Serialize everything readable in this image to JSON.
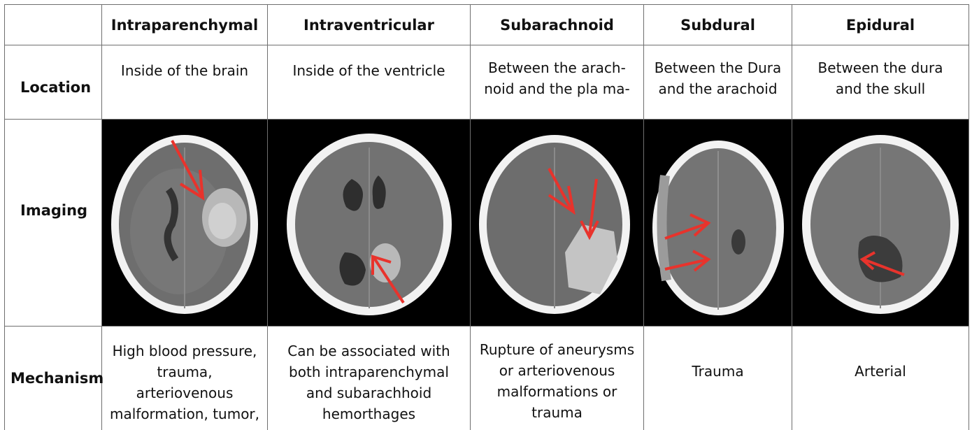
{
  "columns": [
    "Intraparenchymal",
    "Intraventricular",
    "Subarachnoid",
    "Subdural",
    "Epidural"
  ],
  "rows": {
    "location": {
      "label": "Location",
      "cells": [
        "Inside of the brain",
        "Inside of the ventricle",
        "Between the arach-\nnoid and the pla ma-",
        "Between the Dura\nand the arachoid",
        "Between the dura\nand the skull"
      ]
    },
    "imaging": {
      "label": "Imaging",
      "images": [
        "ct-scan-intraparenchymal",
        "ct-scan-intraventricular",
        "ct-scan-subarachnoid",
        "ct-scan-subdural",
        "ct-scan-epidural"
      ]
    },
    "mechanism": {
      "label": "Mechanism",
      "cells": [
        "High blood pressure,\ntrauma,\narteriovenous\nmalformation, tumor,",
        "Can be associated with\nboth intraparenchymal\nand subarachhoid\nhemorthages",
        "Rupture of aneurysms\nor arteriovenous\nmalformations or\ntrauma",
        "Trauma",
        "Arterial"
      ]
    }
  },
  "colors": {
    "arrow": "#e8332c",
    "grid": "#6f6f6f",
    "scan_bg": "#000000"
  }
}
